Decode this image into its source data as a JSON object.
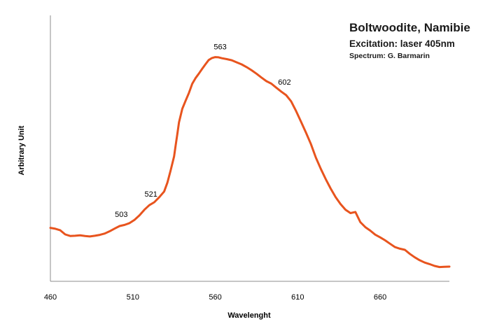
{
  "chart_data": {
    "type": "line",
    "title": "Boltwoodite, Namibie",
    "subtitle": "Excitation: laser 405nm",
    "credit": "Spectrum: G. Barmarin",
    "xlabel": "Wavelenght",
    "ylabel": "Arbitrary Unit",
    "xlim": [
      460,
      702
    ],
    "ylim": [
      0,
      100
    ],
    "x_ticks": [
      460,
      510,
      560,
      610,
      660
    ],
    "grid": false,
    "legend": "none",
    "series_color": "#e8541e",
    "series": [
      {
        "x": [
          460,
          463,
          466,
          469,
          472,
          475,
          478,
          481,
          484,
          487,
          490,
          493,
          496,
          499,
          502,
          505,
          508,
          511,
          514,
          517,
          520,
          523,
          526,
          529,
          531,
          533,
          535,
          536,
          537,
          538,
          540,
          542,
          544,
          546,
          548,
          550,
          552,
          554,
          556,
          558,
          560,
          562,
          564,
          567,
          570,
          573,
          576,
          579,
          582,
          585,
          588,
          591,
          594,
          597,
          600,
          603,
          606,
          609,
          612,
          615,
          618,
          621,
          624,
          627,
          630,
          633,
          636,
          639,
          642,
          645,
          648,
          651,
          654,
          657,
          660,
          663,
          666,
          669,
          672,
          675,
          678,
          681,
          684,
          687,
          690,
          693,
          696,
          699,
          702
        ],
        "y": [
          20.5,
          20.1,
          19.4,
          17.6,
          16.9,
          17.0,
          17.2,
          16.9,
          16.7,
          17.0,
          17.4,
          18.0,
          19.0,
          20.2,
          21.3,
          21.8,
          22.6,
          24.0,
          26.0,
          28.5,
          30.5,
          31.8,
          34.0,
          36.5,
          40.5,
          46.0,
          52.0,
          57.0,
          62.0,
          67.0,
          73.0,
          76.5,
          80.0,
          84.0,
          86.5,
          88.5,
          90.6,
          92.6,
          94.5,
          95.4,
          95.8,
          95.7,
          95.3,
          94.9,
          94.4,
          93.5,
          92.6,
          91.4,
          90.0,
          88.5,
          86.8,
          85.2,
          84.1,
          82.3,
          80.6,
          79.0,
          76.3,
          72.0,
          67.3,
          62.5,
          57.5,
          51.5,
          46.5,
          42.0,
          37.8,
          34.0,
          31.0,
          28.5,
          27.0,
          27.5,
          23.0,
          20.8,
          19.3,
          17.5,
          16.3,
          15.0,
          13.5,
          12.0,
          11.3,
          10.8,
          9.0,
          7.5,
          6.2,
          5.2,
          4.5,
          3.7,
          3.2,
          3.3,
          3.4
        ]
      }
    ],
    "annotations": [
      {
        "x": 503,
        "y": 21.6,
        "text": "503"
      },
      {
        "x": 521,
        "y": 30.5,
        "text": "521"
      },
      {
        "x": 563,
        "y": 95.6,
        "text": "563"
      },
      {
        "x": 602,
        "y": 79.9,
        "text": "602"
      }
    ]
  }
}
